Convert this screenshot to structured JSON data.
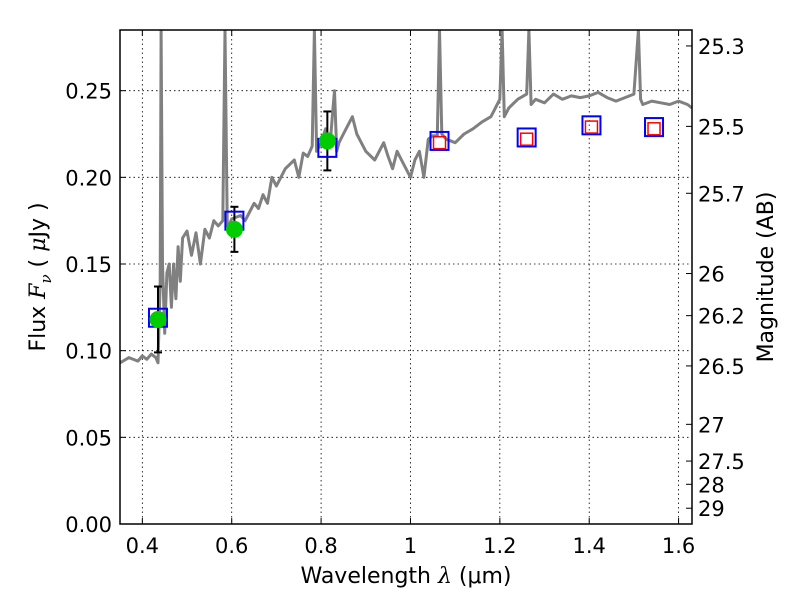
{
  "chart_data": {
    "type": "scatter",
    "xlabel": {
      "prefix": "Wavelength ",
      "symbol": "λ",
      "unit": " (μm)"
    },
    "ylabel": {
      "prefix": "Flux ",
      "symbol": "F",
      "subscript": "ν",
      "unit_open": " ( ",
      "unit_mu": "μ",
      "unit_close": "Jy )"
    },
    "y2label": "Magnitude (AB)",
    "xlim": [
      0.35,
      1.63
    ],
    "ylim": [
      0.0,
      0.285
    ],
    "grid": true,
    "x_ticks": [
      {
        "value": 0.4,
        "label": "0.4"
      },
      {
        "value": 0.6,
        "label": "0.6"
      },
      {
        "value": 0.8,
        "label": "0.8"
      },
      {
        "value": 1.0,
        "label": "1"
      },
      {
        "value": 1.2,
        "label": "1.2"
      },
      {
        "value": 1.4,
        "label": "1.4"
      },
      {
        "value": 1.6,
        "label": "1.6"
      }
    ],
    "y_ticks": [
      {
        "value": 0.0,
        "label": "0.00"
      },
      {
        "value": 0.05,
        "label": "0.05"
      },
      {
        "value": 0.1,
        "label": "0.10"
      },
      {
        "value": 0.15,
        "label": "0.15"
      },
      {
        "value": 0.2,
        "label": "0.20"
      },
      {
        "value": 0.25,
        "label": "0.25"
      }
    ],
    "y2_ticks": [
      {
        "flux": 0.2758,
        "label": "25.3"
      },
      {
        "flux": 0.2294,
        "label": "25.5"
      },
      {
        "flux": 0.1908,
        "label": "25.7"
      },
      {
        "flux": 0.1445,
        "label": "26"
      },
      {
        "flux": 0.1202,
        "label": "26.2"
      },
      {
        "flux": 0.0912,
        "label": "26.5"
      },
      {
        "flux": 0.0575,
        "label": "27"
      },
      {
        "flux": 0.0363,
        "label": "27.5"
      },
      {
        "flux": 0.0229,
        "label": "28"
      },
      {
        "flux": 0.0091,
        "label": "29"
      }
    ],
    "series": [
      {
        "name": "model_spectrum",
        "kind": "line",
        "color": "#808080",
        "points": [
          [
            0.35,
            0.093
          ],
          [
            0.37,
            0.096
          ],
          [
            0.39,
            0.094
          ],
          [
            0.4,
            0.097
          ],
          [
            0.41,
            0.095
          ],
          [
            0.42,
            0.098
          ],
          [
            0.43,
            0.096
          ],
          [
            0.435,
            0.093
          ],
          [
            0.44,
            0.14
          ],
          [
            0.442,
            0.285
          ],
          [
            0.445,
            0.15
          ],
          [
            0.45,
            0.11
          ],
          [
            0.455,
            0.145
          ],
          [
            0.46,
            0.15
          ],
          [
            0.465,
            0.125
          ],
          [
            0.47,
            0.15
          ],
          [
            0.475,
            0.13
          ],
          [
            0.48,
            0.16
          ],
          [
            0.485,
            0.14
          ],
          [
            0.49,
            0.165
          ],
          [
            0.5,
            0.169
          ],
          [
            0.51,
            0.155
          ],
          [
            0.52,
            0.168
          ],
          [
            0.53,
            0.15
          ],
          [
            0.54,
            0.17
          ],
          [
            0.55,
            0.165
          ],
          [
            0.56,
            0.175
          ],
          [
            0.57,
            0.172
          ],
          [
            0.58,
            0.175
          ],
          [
            0.585,
            0.285
          ],
          [
            0.59,
            0.17
          ],
          [
            0.6,
            0.176
          ],
          [
            0.62,
            0.178
          ],
          [
            0.63,
            0.175
          ],
          [
            0.64,
            0.18
          ],
          [
            0.65,
            0.185
          ],
          [
            0.66,
            0.182
          ],
          [
            0.67,
            0.19
          ],
          [
            0.68,
            0.185
          ],
          [
            0.69,
            0.2
          ],
          [
            0.7,
            0.195
          ],
          [
            0.72,
            0.205
          ],
          [
            0.74,
            0.21
          ],
          [
            0.75,
            0.2
          ],
          [
            0.76,
            0.214
          ],
          [
            0.77,
            0.212
          ],
          [
            0.78,
            0.218
          ],
          [
            0.785,
            0.285
          ],
          [
            0.79,
            0.215
          ],
          [
            0.8,
            0.22
          ],
          [
            0.81,
            0.228
          ],
          [
            0.82,
            0.218
          ],
          [
            0.825,
            0.235
          ],
          [
            0.83,
            0.25
          ],
          [
            0.835,
            0.215
          ],
          [
            0.84,
            0.22
          ],
          [
            0.85,
            0.225
          ],
          [
            0.86,
            0.23
          ],
          [
            0.87,
            0.235
          ],
          [
            0.88,
            0.225
          ],
          [
            0.89,
            0.22
          ],
          [
            0.9,
            0.215
          ],
          [
            0.92,
            0.21
          ],
          [
            0.94,
            0.22
          ],
          [
            0.95,
            0.212
          ],
          [
            0.96,
            0.205
          ],
          [
            0.97,
            0.215
          ],
          [
            0.98,
            0.21
          ],
          [
            0.99,
            0.205
          ],
          [
            1.0,
            0.2
          ],
          [
            1.01,
            0.21
          ],
          [
            1.02,
            0.215
          ],
          [
            1.03,
            0.2
          ],
          [
            1.04,
            0.222
          ],
          [
            1.05,
            0.224
          ],
          [
            1.06,
            0.224
          ],
          [
            1.065,
            0.285
          ],
          [
            1.07,
            0.225
          ],
          [
            1.08,
            0.222
          ],
          [
            1.1,
            0.22
          ],
          [
            1.12,
            0.225
          ],
          [
            1.14,
            0.228
          ],
          [
            1.16,
            0.232
          ],
          [
            1.18,
            0.235
          ],
          [
            1.19,
            0.24
          ],
          [
            1.2,
            0.245
          ],
          [
            1.205,
            0.285
          ],
          [
            1.21,
            0.235
          ],
          [
            1.22,
            0.24
          ],
          [
            1.24,
            0.245
          ],
          [
            1.26,
            0.248
          ],
          [
            1.265,
            0.285
          ],
          [
            1.27,
            0.242
          ],
          [
            1.28,
            0.245
          ],
          [
            1.3,
            0.243
          ],
          [
            1.32,
            0.248
          ],
          [
            1.34,
            0.245
          ],
          [
            1.36,
            0.247
          ],
          [
            1.38,
            0.246
          ],
          [
            1.4,
            0.247
          ],
          [
            1.42,
            0.249
          ],
          [
            1.44,
            0.246
          ],
          [
            1.46,
            0.244
          ],
          [
            1.48,
            0.246
          ],
          [
            1.5,
            0.248
          ],
          [
            1.51,
            0.285
          ],
          [
            1.515,
            0.245
          ],
          [
            1.52,
            0.242
          ],
          [
            1.54,
            0.244
          ],
          [
            1.56,
            0.243
          ],
          [
            1.58,
            0.242
          ],
          [
            1.6,
            0.244
          ],
          [
            1.62,
            0.242
          ],
          [
            1.63,
            0.24
          ]
        ]
      },
      {
        "name": "observed_photometry",
        "kind": "circle",
        "color": "#00cc00",
        "points": [
          {
            "x": 0.435,
            "y": 0.118,
            "yerr": 0.019
          },
          {
            "x": 0.606,
            "y": 0.17,
            "yerr": 0.013
          },
          {
            "x": 0.814,
            "y": 0.221,
            "yerr": 0.017
          }
        ]
      },
      {
        "name": "model_photometry_blue",
        "kind": "square",
        "color": "#0000ff",
        "points": [
          {
            "x": 0.435,
            "y": 0.119
          },
          {
            "x": 0.606,
            "y": 0.175
          },
          {
            "x": 0.814,
            "y": 0.217
          },
          {
            "x": 1.065,
            "y": 0.221
          },
          {
            "x": 1.26,
            "y": 0.223
          },
          {
            "x": 1.405,
            "y": 0.23
          },
          {
            "x": 1.545,
            "y": 0.229
          }
        ]
      },
      {
        "name": "model_photometry_red",
        "kind": "square",
        "color": "#ff0000",
        "points": [
          {
            "x": 1.065,
            "y": 0.22
          },
          {
            "x": 1.26,
            "y": 0.222
          },
          {
            "x": 1.405,
            "y": 0.229
          },
          {
            "x": 1.545,
            "y": 0.228
          }
        ]
      }
    ]
  }
}
